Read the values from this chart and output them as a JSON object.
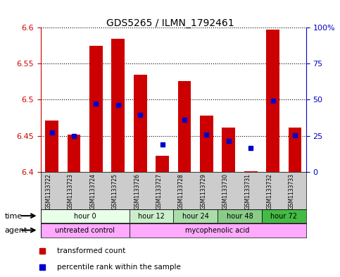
{
  "title": "GDS5265 / ILMN_1792461",
  "samples": [
    "GSM1133722",
    "GSM1133723",
    "GSM1133724",
    "GSM1133725",
    "GSM1133726",
    "GSM1133727",
    "GSM1133728",
    "GSM1133729",
    "GSM1133730",
    "GSM1133731",
    "GSM1133732",
    "GSM1133733"
  ],
  "bar_values": [
    6.471,
    6.452,
    6.575,
    6.585,
    6.535,
    6.422,
    6.526,
    6.478,
    6.461,
    6.401,
    6.597,
    6.461
  ],
  "bar_base": 6.4,
  "percentile_values": [
    6.454,
    6.45,
    6.495,
    6.493,
    6.479,
    6.438,
    6.472,
    6.452,
    6.443,
    6.433,
    6.499,
    6.451
  ],
  "ylim": [
    6.4,
    6.6
  ],
  "yticks": [
    6.4,
    6.45,
    6.5,
    6.55,
    6.6
  ],
  "ytick_labels": [
    "6.4",
    "6.45",
    "6.5",
    "6.55",
    "6.6"
  ],
  "right_yticks": [
    0,
    25,
    50,
    75,
    100
  ],
  "right_ytick_labels": [
    "0",
    "25",
    "50",
    "75",
    "100%"
  ],
  "bar_color": "#cc0000",
  "percentile_color": "#0000cc",
  "bar_width": 0.6,
  "time_groups": [
    {
      "label": "hour 0",
      "samples": [
        0,
        1,
        2,
        3
      ]
    },
    {
      "label": "hour 12",
      "samples": [
        4,
        5
      ]
    },
    {
      "label": "hour 24",
      "samples": [
        6,
        7
      ]
    },
    {
      "label": "hour 48",
      "samples": [
        8,
        9
      ]
    },
    {
      "label": "hour 72",
      "samples": [
        10,
        11
      ]
    }
  ],
  "time_group_colors": [
    "#e8ffe8",
    "#cceecc",
    "#aaddaa",
    "#88cc88",
    "#44bb44"
  ],
  "agent_groups": [
    {
      "label": "untreated control",
      "xmin": -0.5,
      "xmax": 3.5,
      "color": "#ffaaff"
    },
    {
      "label": "mycophenolic acid",
      "xmin": 3.5,
      "xmax": 11.5,
      "color": "#ffaaff"
    }
  ],
  "legend_items": [
    {
      "label": "transformed count",
      "color": "#cc0000"
    },
    {
      "label": "percentile rank within the sample",
      "color": "#0000cc"
    }
  ],
  "xlabel_time": "time",
  "xlabel_agent": "agent",
  "plot_bg_color": "#ffffff",
  "sample_bg_color": "#cccccc",
  "left_axis_color": "#cc0000",
  "right_axis_color": "#0000cc"
}
